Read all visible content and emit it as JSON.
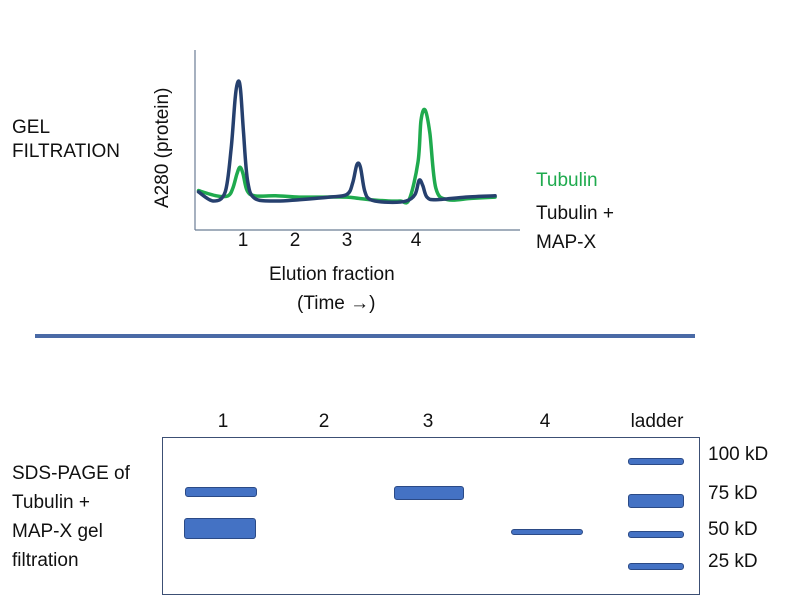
{
  "gel_filtration": {
    "section_label": "GEL\nFILTRATION",
    "ylabel": "A280 (protein)",
    "xlabel_line1": "Elution fraction",
    "xlabel_line2": "(Time →)",
    "x_ticks": [
      "1",
      "2",
      "3",
      "4"
    ],
    "legend": {
      "tubulin": "Tubulin",
      "tubulin_mapx_line1": "Tubulin +",
      "tubulin_mapx_line2": "MAP-X"
    },
    "colors": {
      "tubulin": "#1faa4e",
      "tubulin_mapx": "#26406e",
      "axis": "#6b7d95"
    },
    "chart_data": {
      "type": "line",
      "x_unit": "elution fraction",
      "xlim": [
        0.2,
        5.5
      ],
      "ylim": [
        0,
        1
      ],
      "series": [
        {
          "name": "Tubulin",
          "x": [
            0.3,
            0.6,
            0.8,
            0.88,
            0.95,
            1.0,
            1.05,
            1.12,
            1.25,
            1.6,
            2.0,
            2.4,
            2.8,
            3.0,
            3.2,
            3.5,
            3.7,
            3.85,
            4.0,
            4.05,
            4.12,
            4.2,
            4.3,
            4.5,
            4.9,
            5.3
          ],
          "y": [
            0.18,
            0.14,
            0.14,
            0.2,
            0.31,
            0.36,
            0.31,
            0.18,
            0.14,
            0.14,
            0.13,
            0.13,
            0.13,
            0.12,
            0.11,
            0.1,
            0.1,
            0.11,
            0.4,
            0.72,
            0.8,
            0.62,
            0.2,
            0.11,
            0.12,
            0.13
          ]
        },
        {
          "name": "Tubulin + MAP-X",
          "x": [
            0.3,
            0.55,
            0.75,
            0.85,
            0.92,
            0.97,
            1.01,
            1.06,
            1.13,
            1.25,
            1.6,
            2.0,
            2.5,
            2.8,
            2.9,
            2.97,
            3.03,
            3.1,
            3.2,
            3.5,
            3.8,
            3.95,
            4.02,
            4.08,
            4.15,
            4.3,
            4.8,
            5.3
          ],
          "y": [
            0.17,
            0.1,
            0.17,
            0.5,
            0.9,
            1.02,
            0.95,
            0.62,
            0.25,
            0.12,
            0.1,
            0.11,
            0.13,
            0.15,
            0.24,
            0.38,
            0.36,
            0.18,
            0.11,
            0.09,
            0.1,
            0.15,
            0.26,
            0.22,
            0.13,
            0.11,
            0.13,
            0.14
          ]
        }
      ]
    }
  },
  "sds_page": {
    "section_label": "SDS-PAGE of\nTubulin +\nMAP-X gel\nfiltration",
    "lanes": [
      "1",
      "2",
      "3",
      "4",
      "ladder"
    ],
    "ladder_labels": [
      "100 kD",
      "75 kD",
      "50 kD",
      "25 kD"
    ],
    "band_color": "#4472c4"
  }
}
